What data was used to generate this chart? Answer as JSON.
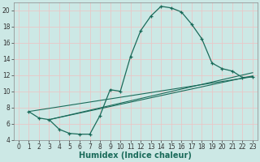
{
  "title": "",
  "xlabel": "Humidex (Indice chaleur)",
  "bg_color": "#cce8e5",
  "grid_color": "#e8c8c8",
  "line_color": "#1a6b5a",
  "xlim": [
    -0.5,
    23.5
  ],
  "ylim": [
    4,
    21
  ],
  "yticks": [
    4,
    6,
    8,
    10,
    12,
    14,
    16,
    18,
    20
  ],
  "xticks": [
    0,
    1,
    2,
    3,
    4,
    5,
    6,
    7,
    8,
    9,
    10,
    11,
    12,
    13,
    14,
    15,
    16,
    17,
    18,
    19,
    20,
    21,
    22,
    23
  ],
  "curve1_x": [
    1,
    2,
    3,
    4,
    5,
    6,
    7,
    8,
    9,
    10,
    11,
    12,
    13,
    14,
    15,
    16,
    17,
    18,
    19,
    20,
    21,
    22,
    23
  ],
  "curve1_y": [
    7.5,
    6.7,
    6.5,
    5.3,
    4.8,
    4.7,
    4.7,
    7.0,
    10.2,
    10.0,
    14.3,
    17.5,
    19.3,
    20.5,
    20.3,
    19.8,
    18.3,
    16.5,
    13.5,
    12.8,
    12.5,
    11.7,
    11.8
  ],
  "line2_x": [
    1,
    20,
    23
  ],
  "line2_y": [
    7.5,
    13.5,
    12.0
  ],
  "line3_x": [
    1,
    23
  ],
  "line3_y": [
    7.5,
    11.8
  ],
  "line4_x": [
    3,
    23
  ],
  "line4_y": [
    6.5,
    11.9
  ],
  "line5_x": [
    3,
    23
  ],
  "line5_y": [
    6.5,
    12.3
  ]
}
